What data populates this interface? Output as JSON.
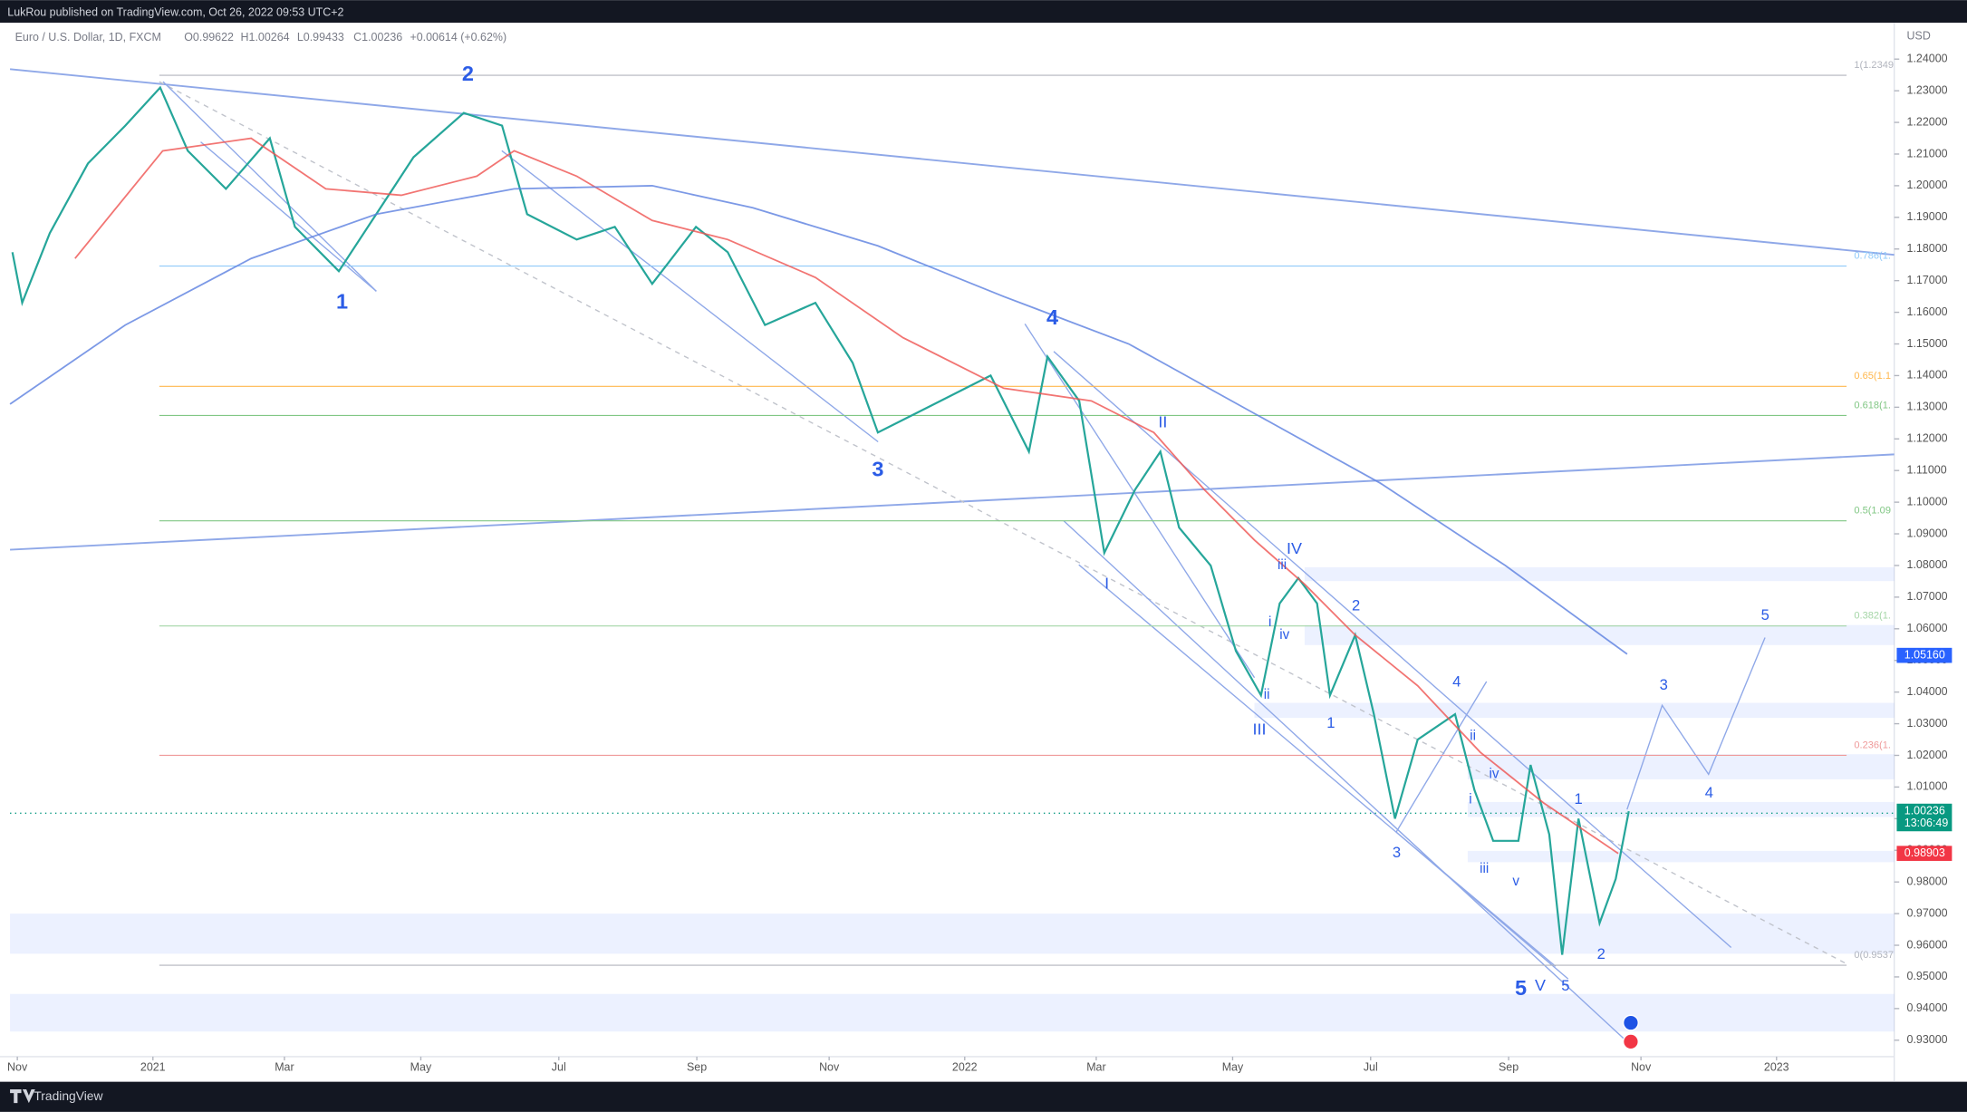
{
  "header": "LukRou published on TradingView.com, Oct 26, 2022 09:53 UTC+2",
  "brand": "TradingView",
  "chart_data": {
    "type": "line",
    "title": "Euro / U.S. Dollar, 1D, FXCM",
    "legend_values": [
      "O0.99622",
      "H1.00264",
      "L0.99433",
      "C1.00236",
      "+0.00614 (+0.62%)"
    ],
    "currency": "USD",
    "countdown": "13:06:49",
    "xlim": [
      2020.824,
      2023.145
    ],
    "xticks": [
      {
        "value": 2020.833,
        "label": "Nov"
      },
      {
        "value": 2021.0,
        "label": "2021"
      },
      {
        "value": 2021.162,
        "label": "Mar"
      },
      {
        "value": 2021.33,
        "label": "May"
      },
      {
        "value": 2021.5,
        "label": "Jul"
      },
      {
        "value": 2021.67,
        "label": "Sep"
      },
      {
        "value": 2021.833,
        "label": "Nov"
      },
      {
        "value": 2022.0,
        "label": "2022"
      },
      {
        "value": 2022.162,
        "label": "Mar"
      },
      {
        "value": 2022.33,
        "label": "May"
      },
      {
        "value": 2022.5,
        "label": "Jul"
      },
      {
        "value": 2022.67,
        "label": "Sep"
      },
      {
        "value": 2022.833,
        "label": "Nov"
      },
      {
        "value": 2023.0,
        "label": "2023"
      }
    ],
    "ylim": [
      0.9248,
      1.2515
    ],
    "yticks": [
      {
        "value": 0.93,
        "label": "0.93000"
      },
      {
        "value": 0.94,
        "label": "0.94000"
      },
      {
        "value": 0.95,
        "label": "0.95000"
      },
      {
        "value": 0.96,
        "label": "0.96000"
      },
      {
        "value": 0.97,
        "label": "0.97000"
      },
      {
        "value": 0.98,
        "label": "0.98000"
      },
      {
        "value": 0.99,
        "label": "0.99000"
      },
      {
        "value": 1.0,
        "label": "1.00000"
      },
      {
        "value": 1.01,
        "label": "1.01000"
      },
      {
        "value": 1.02,
        "label": "1.02000"
      },
      {
        "value": 1.03,
        "label": "1.03000"
      },
      {
        "value": 1.04,
        "label": "1.04000"
      },
      {
        "value": 1.05,
        "label": "1.05000"
      },
      {
        "value": 1.06,
        "label": "1.06000"
      },
      {
        "value": 1.07,
        "label": "1.07000"
      },
      {
        "value": 1.08,
        "label": "1.08000"
      },
      {
        "value": 1.09,
        "label": "1.09000"
      },
      {
        "value": 1.1,
        "label": "1.10000"
      },
      {
        "value": 1.11,
        "label": "1.11000"
      },
      {
        "value": 1.12,
        "label": "1.12000"
      },
      {
        "value": 1.13,
        "label": "1.13000"
      },
      {
        "value": 1.14,
        "label": "1.14000"
      },
      {
        "value": 1.15,
        "label": "1.15000"
      },
      {
        "value": 1.16,
        "label": "1.16000"
      },
      {
        "value": 1.17,
        "label": "1.17000"
      },
      {
        "value": 1.18,
        "label": "1.18000"
      },
      {
        "value": 1.19,
        "label": "1.19000"
      },
      {
        "value": 1.2,
        "label": "1.20000"
      },
      {
        "value": 1.21,
        "label": "1.21000"
      },
      {
        "value": 1.22,
        "label": "1.22000"
      },
      {
        "value": 1.23,
        "label": "1.23000"
      },
      {
        "value": 1.24,
        "label": "1.24000"
      }
    ],
    "series": [
      {
        "color": "#26a69a",
        "x": [
          2020.827,
          2020.839,
          2020.873,
          2020.92,
          2020.966,
          2021.009,
          2021.043,
          2021.09,
          2021.144,
          2021.175,
          2021.229,
          2021.275,
          2021.321,
          2021.383,
          2021.43,
          2021.461,
          2021.522,
          2021.569,
          2021.615,
          2021.669,
          2021.708,
          2021.754,
          2021.816,
          2021.862,
          2021.893,
          2021.955,
          2022.032,
          2022.079,
          2022.102,
          2022.141,
          2022.172,
          2022.21,
          2022.241,
          2022.264,
          2022.303,
          2022.334,
          2022.365,
          2022.388,
          2022.411,
          2022.434,
          2022.45,
          2022.481,
          2022.504,
          2022.53,
          2022.558,
          2022.604,
          2022.628,
          2022.651,
          2022.682,
          2022.697,
          2022.72,
          2022.736,
          2022.756,
          2022.782,
          2022.802,
          2022.818
        ],
        "values": [
          1.179,
          1.163,
          1.185,
          1.207,
          1.219,
          1.231,
          1.211,
          1.199,
          1.215,
          1.187,
          1.173,
          1.191,
          1.209,
          1.223,
          1.219,
          1.191,
          1.183,
          1.187,
          1.169,
          1.187,
          1.179,
          1.156,
          1.163,
          1.144,
          1.122,
          1.13,
          1.14,
          1.116,
          1.146,
          1.132,
          1.084,
          1.104,
          1.116,
          1.092,
          1.08,
          1.053,
          1.039,
          1.068,
          1.076,
          1.068,
          1.039,
          1.058,
          1.033,
          1.0,
          1.025,
          1.033,
          1.009,
          0.993,
          0.993,
          1.017,
          0.995,
          0.957,
          1.0,
          0.967,
          0.981,
          1.00236
        ]
      },
      {
        "color": "#ef5350",
        "x": [
          2020.904,
          2021.012,
          2021.121,
          2021.213,
          2021.306,
          2021.399,
          2021.445,
          2021.522,
          2021.615,
          2021.708,
          2021.816,
          2021.924,
          2022.048,
          2022.156,
          2022.233,
          2022.295,
          2022.357,
          2022.419,
          2022.481,
          2022.558,
          2022.635,
          2022.713,
          2022.805
        ],
        "values": [
          1.177,
          1.211,
          1.215,
          1.199,
          1.197,
          1.203,
          1.211,
          1.203,
          1.189,
          1.183,
          1.171,
          1.152,
          1.136,
          1.132,
          1.122,
          1.104,
          1.088,
          1.074,
          1.058,
          1.042,
          1.021,
          1.005,
          0.989
        ]
      },
      {
        "color": "#5b7fe0",
        "x": [
          2020.824,
          2020.966,
          2021.121,
          2021.275,
          2021.445,
          2021.615,
          2021.739,
          2021.893,
          2022.048,
          2022.202,
          2022.357,
          2022.512,
          2022.666,
          2022.816
        ],
        "values": [
          1.131,
          1.156,
          1.177,
          1.191,
          1.199,
          1.2,
          1.193,
          1.181,
          1.165,
          1.15,
          1.128,
          1.106,
          1.08,
          1.052
        ]
      }
    ],
    "fib_levels": [
      {
        "price": 1.2349,
        "label": "1(1.2349",
        "color": "#b2b5be"
      },
      {
        "price": 1.1746,
        "label": "0.786(1.",
        "color": "#90caf9"
      },
      {
        "price": 1.1366,
        "label": "0.65(1.1",
        "color": "#ffb74d"
      },
      {
        "price": 1.1274,
        "label": "0.618(1.",
        "color": "#81c784"
      },
      {
        "price": 1.0941,
        "label": "0.5(1.09",
        "color": "#81c784"
      },
      {
        "price": 1.0609,
        "label": "0.382(1.",
        "color": "#a5d6a7"
      },
      {
        "price": 1.02,
        "label": "0.236(1.",
        "color": "#ef9a9a"
      },
      {
        "price": 0.9537,
        "label": "0(0.9537",
        "color": "#b2b5be"
      }
    ],
    "price_tags": [
      {
        "value": 1.0516,
        "label": "1.05160",
        "color": "#2962ff"
      },
      {
        "value": 1.00236,
        "label": "1.00236",
        "color": "#089981"
      },
      {
        "value": 0.98903,
        "label": "0.98903",
        "color": "#f23645"
      }
    ],
    "annotations": [
      {
        "text": "1",
        "x": 2021.233,
        "y": 1.163,
        "size": 17
      },
      {
        "text": "2",
        "x": 2021.388,
        "y": 1.235,
        "size": 17
      },
      {
        "text": "3",
        "x": 2021.893,
        "y": 1.11,
        "size": 17
      },
      {
        "text": "4",
        "x": 2022.108,
        "y": 1.158,
        "size": 17
      },
      {
        "text": "5",
        "x": 2022.685,
        "y": 0.946,
        "size": 17
      },
      {
        "text": "I",
        "x": 2022.175,
        "y": 1.074,
        "size": 13
      },
      {
        "text": "II",
        "x": 2022.244,
        "y": 1.125,
        "size": 13
      },
      {
        "text": "III",
        "x": 2022.363,
        "y": 1.028,
        "size": 13
      },
      {
        "text": "IV",
        "x": 2022.406,
        "y": 1.085,
        "size": 13
      },
      {
        "text": "V",
        "x": 2022.709,
        "y": 0.947,
        "size": 13
      },
      {
        "text": "iii",
        "x": 2022.391,
        "y": 1.08,
        "size": 11
      },
      {
        "text": "i",
        "x": 2022.376,
        "y": 1.062,
        "size": 11
      },
      {
        "text": "iv",
        "x": 2022.394,
        "y": 1.058,
        "size": 11
      },
      {
        "text": "ii",
        "x": 2022.372,
        "y": 1.039,
        "size": 11
      },
      {
        "text": "1",
        "x": 2022.451,
        "y": 1.03,
        "size": 12
      },
      {
        "text": "2",
        "x": 2022.482,
        "y": 1.067,
        "size": 12
      },
      {
        "text": "3",
        "x": 2022.532,
        "y": 0.989,
        "size": 12
      },
      {
        "text": "4",
        "x": 2022.606,
        "y": 1.043,
        "size": 12
      },
      {
        "text": "ii",
        "x": 2022.626,
        "y": 1.026,
        "size": 11
      },
      {
        "text": "iv",
        "x": 2022.652,
        "y": 1.014,
        "size": 11
      },
      {
        "text": "i",
        "x": 2022.623,
        "y": 1.006,
        "size": 11
      },
      {
        "text": "iii",
        "x": 2022.64,
        "y": 0.984,
        "size": 11
      },
      {
        "text": "v",
        "x": 2022.679,
        "y": 0.98,
        "size": 11
      },
      {
        "text": "5",
        "x": 2022.74,
        "y": 0.947,
        "size": 12
      },
      {
        "text": "1",
        "x": 2022.756,
        "y": 1.006,
        "size": 12
      },
      {
        "text": "2",
        "x": 2022.784,
        "y": 0.957,
        "size": 12
      },
      {
        "text": "3",
        "x": 2022.861,
        "y": 1.042,
        "size": 12
      },
      {
        "text": "4",
        "x": 2022.917,
        "y": 1.008,
        "size": 12
      },
      {
        "text": "5",
        "x": 2022.986,
        "y": 1.064,
        "size": 12
      }
    ]
  }
}
